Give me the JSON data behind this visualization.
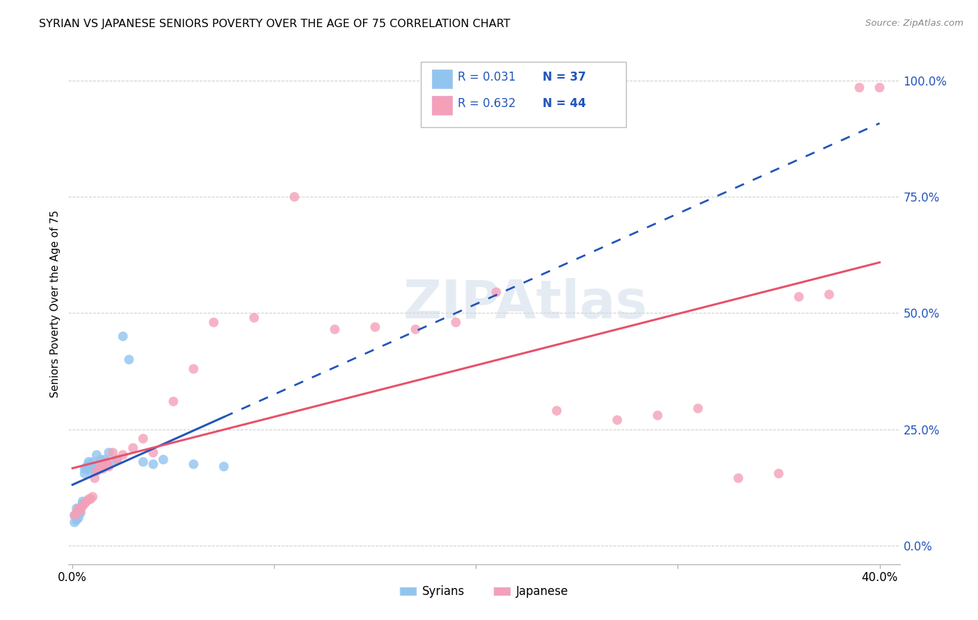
{
  "title": "SYRIAN VS JAPANESE SENIORS POVERTY OVER THE AGE OF 75 CORRELATION CHART",
  "source": "Source: ZipAtlas.com",
  "ylabel": "Seniors Poverty Over the Age of 75",
  "xlabel_ticks": [
    "0.0%",
    "",
    "",
    "",
    "40.0%"
  ],
  "xlabel_vals": [
    0.0,
    0.1,
    0.2,
    0.3,
    0.4
  ],
  "ylabel_ticks": [
    "0.0%",
    "25.0%",
    "50.0%",
    "75.0%",
    "100.0%"
  ],
  "ylabel_vals": [
    0.0,
    0.25,
    0.5,
    0.75,
    1.0
  ],
  "xlim": [
    -0.002,
    0.41
  ],
  "ylim": [
    -0.04,
    1.08
  ],
  "watermark": "ZIPAtlas",
  "syrians_color": "#91C4EF",
  "japanese_color": "#F4A0B8",
  "syrians_line_color": "#2255BB",
  "japanese_line_color": "#E8506A",
  "blue_color": "#2255BB",
  "syrians_x": [
    0.001,
    0.001,
    0.002,
    0.002,
    0.003,
    0.003,
    0.004,
    0.004,
    0.005,
    0.005,
    0.006,
    0.006,
    0.007,
    0.007,
    0.008,
    0.008,
    0.009,
    0.009,
    0.01,
    0.01,
    0.011,
    0.012,
    0.013,
    0.014,
    0.015,
    0.016,
    0.017,
    0.018,
    0.02,
    0.022,
    0.025,
    0.028,
    0.035,
    0.04,
    0.045,
    0.06,
    0.075
  ],
  "syrians_y": [
    0.05,
    0.065,
    0.055,
    0.08,
    0.06,
    0.075,
    0.07,
    0.08,
    0.09,
    0.095,
    0.155,
    0.165,
    0.17,
    0.165,
    0.175,
    0.18,
    0.16,
    0.17,
    0.165,
    0.18,
    0.165,
    0.195,
    0.175,
    0.185,
    0.175,
    0.185,
    0.175,
    0.2,
    0.18,
    0.185,
    0.45,
    0.4,
    0.18,
    0.175,
    0.185,
    0.175,
    0.17
  ],
  "japanese_x": [
    0.001,
    0.002,
    0.003,
    0.004,
    0.005,
    0.006,
    0.007,
    0.008,
    0.009,
    0.01,
    0.011,
    0.012,
    0.013,
    0.014,
    0.015,
    0.016,
    0.017,
    0.018,
    0.02,
    0.022,
    0.025,
    0.03,
    0.035,
    0.04,
    0.05,
    0.06,
    0.07,
    0.09,
    0.11,
    0.13,
    0.15,
    0.17,
    0.19,
    0.21,
    0.24,
    0.27,
    0.29,
    0.31,
    0.33,
    0.35,
    0.36,
    0.375,
    0.39,
    0.4
  ],
  "japanese_y": [
    0.065,
    0.07,
    0.08,
    0.075,
    0.085,
    0.09,
    0.095,
    0.1,
    0.1,
    0.105,
    0.145,
    0.16,
    0.165,
    0.17,
    0.165,
    0.175,
    0.18,
    0.17,
    0.2,
    0.185,
    0.195,
    0.21,
    0.23,
    0.2,
    0.31,
    0.38,
    0.48,
    0.49,
    0.75,
    0.465,
    0.47,
    0.465,
    0.48,
    0.545,
    0.29,
    0.27,
    0.28,
    0.295,
    0.145,
    0.155,
    0.535,
    0.54,
    0.985,
    0.985
  ]
}
